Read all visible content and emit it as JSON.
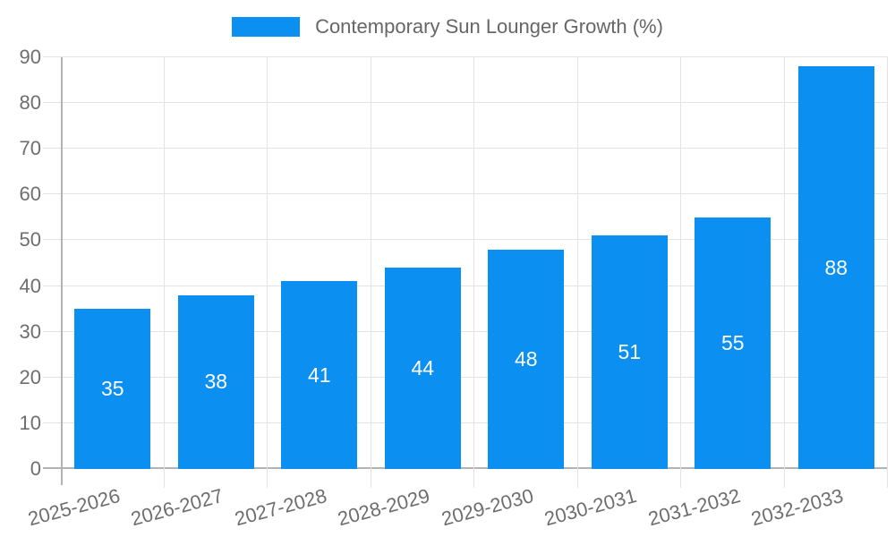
{
  "chart_data": {
    "type": "bar",
    "title": "Contemporary Sun Lounger Growth (%)",
    "categories": [
      "2025-2026",
      "2026-2027",
      "2027-2028",
      "2028-2029",
      "2029-2030",
      "2030-2031",
      "2031-2032",
      "2032-2033"
    ],
    "values": [
      35,
      38,
      41,
      44,
      48,
      51,
      55,
      88
    ],
    "xlabel": "",
    "ylabel": "",
    "ylim": [
      0,
      90
    ],
    "ytick_step": 10,
    "ytick_labels": [
      "0",
      "10",
      "20",
      "30",
      "40",
      "50",
      "60",
      "70",
      "80",
      "90"
    ],
    "legend_position": "top",
    "grid": true,
    "value_labels_inside_bars": true,
    "x_label_rotation_deg": -15,
    "colors": {
      "bar": "#0b90f1",
      "value_label": "#ffffff",
      "grid_line": "#e3e3e3",
      "axis_line": "#b3b3b3",
      "tick_text": "#6e6e6e",
      "legend_text": "#666666",
      "background": "#ffffff"
    }
  }
}
